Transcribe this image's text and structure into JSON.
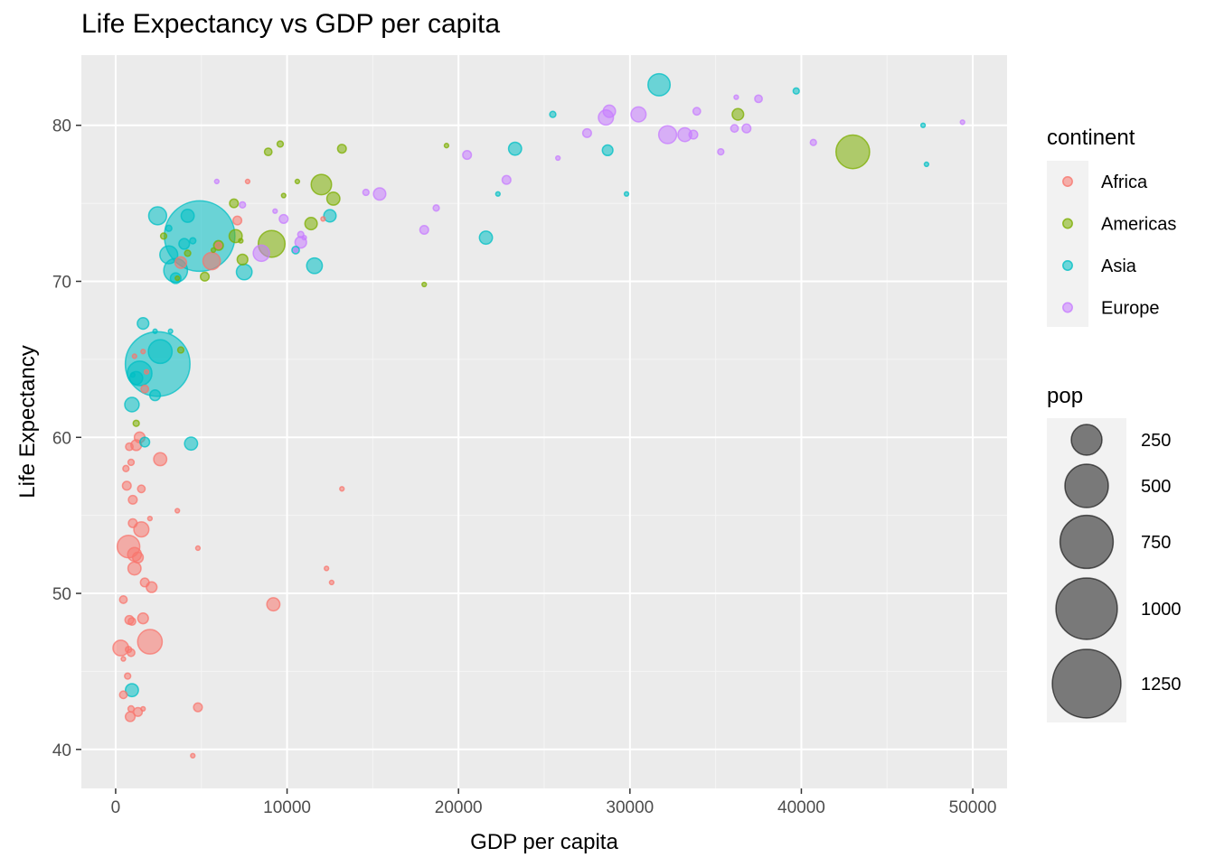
{
  "chart_data": {
    "type": "scatter",
    "title": "Life Expectancy vs GDP per capita",
    "xlabel": "GDP per capita",
    "ylabel": "Life Expectancy",
    "xlim": [
      -2000,
      52000
    ],
    "ylim": [
      37.5,
      84.5
    ],
    "x_ticks": [
      0,
      10000,
      20000,
      30000,
      40000,
      50000
    ],
    "y_ticks": [
      40,
      50,
      60,
      70,
      80
    ],
    "grid": true,
    "legend_position": "right",
    "color_legend": {
      "title": "continent",
      "entries": [
        {
          "name": "Africa",
          "color": "#F8766D"
        },
        {
          "name": "Americas",
          "color": "#7CAE00"
        },
        {
          "name": "Asia",
          "color": "#00BFC4"
        },
        {
          "name": "Europe",
          "color": "#C77CFF"
        }
      ]
    },
    "size_legend": {
      "title": "pop",
      "entries": [
        250,
        500,
        750,
        1000,
        1250
      ]
    },
    "series": [
      {
        "name": "Africa",
        "points": [
          {
            "x": 1000,
            "y": 54.5,
            "pop": 20
          },
          {
            "x": 1500,
            "y": 54.1,
            "pop": 60
          },
          {
            "x": 750,
            "y": 53.0,
            "pop": 135
          },
          {
            "x": 1100,
            "y": 52.5,
            "pop": 50
          },
          {
            "x": 1300,
            "y": 52.3,
            "pop": 30
          },
          {
            "x": 1100,
            "y": 51.6,
            "pop": 45
          },
          {
            "x": 1700,
            "y": 50.7,
            "pop": 20
          },
          {
            "x": 2100,
            "y": 50.4,
            "pop": 30
          },
          {
            "x": 450,
            "y": 49.6,
            "pop": 15
          },
          {
            "x": 1600,
            "y": 48.4,
            "pop": 30
          },
          {
            "x": 800,
            "y": 48.3,
            "pop": 20
          },
          {
            "x": 950,
            "y": 48.2,
            "pop": 15
          },
          {
            "x": 2000,
            "y": 46.9,
            "pop": 160
          },
          {
            "x": 300,
            "y": 46.5,
            "pop": 65
          },
          {
            "x": 750,
            "y": 46.4,
            "pop": 10
          },
          {
            "x": 900,
            "y": 46.2,
            "pop": 15
          },
          {
            "x": 450,
            "y": 45.8,
            "pop": 5
          },
          {
            "x": 700,
            "y": 44.7,
            "pop": 10
          },
          {
            "x": 450,
            "y": 43.5,
            "pop": 15
          },
          {
            "x": 4800,
            "y": 42.7,
            "pop": 20
          },
          {
            "x": 900,
            "y": 42.6,
            "pop": 10
          },
          {
            "x": 1300,
            "y": 42.4,
            "pop": 20
          },
          {
            "x": 1600,
            "y": 42.6,
            "pop": 5
          },
          {
            "x": 850,
            "y": 42.1,
            "pop": 25
          },
          {
            "x": 4500,
            "y": 39.6,
            "pop": 5
          },
          {
            "x": 9200,
            "y": 49.3,
            "pop": 45
          },
          {
            "x": 13200,
            "y": 56.7,
            "pop": 2
          },
          {
            "x": 12300,
            "y": 51.6,
            "pop": 2
          },
          {
            "x": 12600,
            "y": 50.7,
            "pop": 2
          },
          {
            "x": 4800,
            "y": 52.9,
            "pop": 5
          },
          {
            "x": 3600,
            "y": 55.3,
            "pop": 5
          },
          {
            "x": 2600,
            "y": 58.6,
            "pop": 45
          },
          {
            "x": 1400,
            "y": 60.0,
            "pop": 30
          },
          {
            "x": 1200,
            "y": 59.5,
            "pop": 30
          },
          {
            "x": 800,
            "y": 59.4,
            "pop": 15
          },
          {
            "x": 600,
            "y": 58.0,
            "pop": 10
          },
          {
            "x": 900,
            "y": 58.4,
            "pop": 10
          },
          {
            "x": 650,
            "y": 56.9,
            "pop": 20
          },
          {
            "x": 1500,
            "y": 56.7,
            "pop": 15
          },
          {
            "x": 1000,
            "y": 56.0,
            "pop": 20
          },
          {
            "x": 2000,
            "y": 54.8,
            "pop": 5
          },
          {
            "x": 1800,
            "y": 64.2,
            "pop": 5
          },
          {
            "x": 1700,
            "y": 63.1,
            "pop": 15
          },
          {
            "x": 1600,
            "y": 65.5,
            "pop": 5
          },
          {
            "x": 1100,
            "y": 65.2,
            "pop": 5
          },
          {
            "x": 3800,
            "y": 71.2,
            "pop": 35
          },
          {
            "x": 5600,
            "y": 71.3,
            "pop": 80
          },
          {
            "x": 7100,
            "y": 73.9,
            "pop": 20
          },
          {
            "x": 7700,
            "y": 76.4,
            "pop": 2
          },
          {
            "x": 12100,
            "y": 74.0,
            "pop": 5
          },
          {
            "x": 6000,
            "y": 72.3,
            "pop": 10
          }
        ]
      },
      {
        "name": "Americas",
        "points": [
          {
            "x": 43000,
            "y": 78.3,
            "pop": 300
          },
          {
            "x": 36300,
            "y": 80.7,
            "pop": 35
          },
          {
            "x": 9100,
            "y": 72.4,
            "pop": 190
          },
          {
            "x": 12000,
            "y": 76.2,
            "pop": 110
          },
          {
            "x": 13200,
            "y": 78.5,
            "pop": 20
          },
          {
            "x": 9600,
            "y": 78.8,
            "pop": 10
          },
          {
            "x": 8900,
            "y": 78.3,
            "pop": 15
          },
          {
            "x": 12700,
            "y": 75.3,
            "pop": 45
          },
          {
            "x": 7000,
            "y": 72.9,
            "pop": 45
          },
          {
            "x": 7400,
            "y": 71.4,
            "pop": 30
          },
          {
            "x": 11400,
            "y": 73.7,
            "pop": 40
          },
          {
            "x": 6900,
            "y": 75.0,
            "pop": 20
          },
          {
            "x": 5200,
            "y": 70.3,
            "pop": 20
          },
          {
            "x": 7300,
            "y": 72.6,
            "pop": 5
          },
          {
            "x": 5700,
            "y": 72.0,
            "pop": 5
          },
          {
            "x": 4200,
            "y": 71.8,
            "pop": 10
          },
          {
            "x": 2800,
            "y": 72.9,
            "pop": 10
          },
          {
            "x": 3600,
            "y": 70.2,
            "pop": 5
          },
          {
            "x": 10600,
            "y": 76.4,
            "pop": 5
          },
          {
            "x": 9800,
            "y": 75.5,
            "pop": 5
          },
          {
            "x": 19300,
            "y": 78.7,
            "pop": 5
          },
          {
            "x": 18000,
            "y": 69.8,
            "pop": 2
          },
          {
            "x": 1200,
            "y": 60.9,
            "pop": 10
          },
          {
            "x": 3800,
            "y": 65.6,
            "pop": 10
          },
          {
            "x": 6000,
            "y": 72.3,
            "pop": 25
          }
        ]
      },
      {
        "name": "Asia",
        "points": [
          {
            "x": 4900,
            "y": 72.9,
            "pop": 1320
          },
          {
            "x": 2450,
            "y": 64.7,
            "pop": 1110
          },
          {
            "x": 31700,
            "y": 82.6,
            "pop": 130
          },
          {
            "x": 3500,
            "y": 70.7,
            "pop": 150
          },
          {
            "x": 2600,
            "y": 65.5,
            "pop": 150
          },
          {
            "x": 1400,
            "y": 64.1,
            "pop": 160
          },
          {
            "x": 3100,
            "y": 71.7,
            "pop": 85
          },
          {
            "x": 2450,
            "y": 74.2,
            "pop": 85
          },
          {
            "x": 1200,
            "y": 63.8,
            "pop": 45
          },
          {
            "x": 7500,
            "y": 70.6,
            "pop": 65
          },
          {
            "x": 11600,
            "y": 71.0,
            "pop": 65
          },
          {
            "x": 23300,
            "y": 78.5,
            "pop": 45
          },
          {
            "x": 21600,
            "y": 72.8,
            "pop": 45
          },
          {
            "x": 12500,
            "y": 74.2,
            "pop": 40
          },
          {
            "x": 4200,
            "y": 74.2,
            "pop": 45
          },
          {
            "x": 950,
            "y": 62.1,
            "pop": 55
          },
          {
            "x": 4400,
            "y": 59.6,
            "pop": 45
          },
          {
            "x": 950,
            "y": 43.8,
            "pop": 45
          },
          {
            "x": 2300,
            "y": 62.7,
            "pop": 30
          },
          {
            "x": 1600,
            "y": 67.3,
            "pop": 35
          },
          {
            "x": 4000,
            "y": 72.4,
            "pop": 30
          },
          {
            "x": 28700,
            "y": 78.4,
            "pop": 30
          },
          {
            "x": 1700,
            "y": 59.7,
            "pop": 25
          },
          {
            "x": 10500,
            "y": 72.0,
            "pop": 15
          },
          {
            "x": 4500,
            "y": 72.6,
            "pop": 10
          },
          {
            "x": 3100,
            "y": 73.4,
            "pop": 10
          },
          {
            "x": 2300,
            "y": 66.8,
            "pop": 5
          },
          {
            "x": 3200,
            "y": 66.8,
            "pop": 2
          },
          {
            "x": 25500,
            "y": 80.7,
            "pop": 10
          },
          {
            "x": 39700,
            "y": 82.2,
            "pop": 10
          },
          {
            "x": 47100,
            "y": 80.0,
            "pop": 5
          },
          {
            "x": 47300,
            "y": 77.5,
            "pop": 5
          },
          {
            "x": 29800,
            "y": 75.6,
            "pop": 2
          },
          {
            "x": 22300,
            "y": 75.6,
            "pop": 5
          },
          {
            "x": 3500,
            "y": 70.2,
            "pop": 30
          },
          {
            "x": 1000,
            "y": 64.0,
            "pop": 5
          }
        ]
      },
      {
        "name": "Europe",
        "points": [
          {
            "x": 32200,
            "y": 79.4,
            "pop": 85
          },
          {
            "x": 30500,
            "y": 80.7,
            "pop": 60
          },
          {
            "x": 28600,
            "y": 80.5,
            "pop": 60
          },
          {
            "x": 28800,
            "y": 80.9,
            "pop": 40
          },
          {
            "x": 33200,
            "y": 79.4,
            "pop": 50
          },
          {
            "x": 33700,
            "y": 79.4,
            "pop": 20
          },
          {
            "x": 8500,
            "y": 71.8,
            "pop": 70
          },
          {
            "x": 15400,
            "y": 75.6,
            "pop": 40
          },
          {
            "x": 10800,
            "y": 72.5,
            "pop": 35
          },
          {
            "x": 36800,
            "y": 79.8,
            "pop": 20
          },
          {
            "x": 36100,
            "y": 79.8,
            "pop": 15
          },
          {
            "x": 37500,
            "y": 81.7,
            "pop": 15
          },
          {
            "x": 33900,
            "y": 80.9,
            "pop": 15
          },
          {
            "x": 40700,
            "y": 78.9,
            "pop": 10
          },
          {
            "x": 35300,
            "y": 78.3,
            "pop": 10
          },
          {
            "x": 27500,
            "y": 79.5,
            "pop": 20
          },
          {
            "x": 20500,
            "y": 78.1,
            "pop": 20
          },
          {
            "x": 22800,
            "y": 76.5,
            "pop": 20
          },
          {
            "x": 25800,
            "y": 77.9,
            "pop": 5
          },
          {
            "x": 18000,
            "y": 73.3,
            "pop": 20
          },
          {
            "x": 18700,
            "y": 74.7,
            "pop": 10
          },
          {
            "x": 14600,
            "y": 75.7,
            "pop": 10
          },
          {
            "x": 9800,
            "y": 74.0,
            "pop": 20
          },
          {
            "x": 10800,
            "y": 73.0,
            "pop": 10
          },
          {
            "x": 7400,
            "y": 74.9,
            "pop": 10
          },
          {
            "x": 9300,
            "y": 74.5,
            "pop": 5
          },
          {
            "x": 5900,
            "y": 76.4,
            "pop": 5
          },
          {
            "x": 10500,
            "y": 72.0,
            "pop": 5
          },
          {
            "x": 49400,
            "y": 80.2,
            "pop": 5
          },
          {
            "x": 36200,
            "y": 81.8,
            "pop": 2
          },
          {
            "x": 11000,
            "y": 72.8,
            "pop": 5
          }
        ]
      }
    ]
  }
}
